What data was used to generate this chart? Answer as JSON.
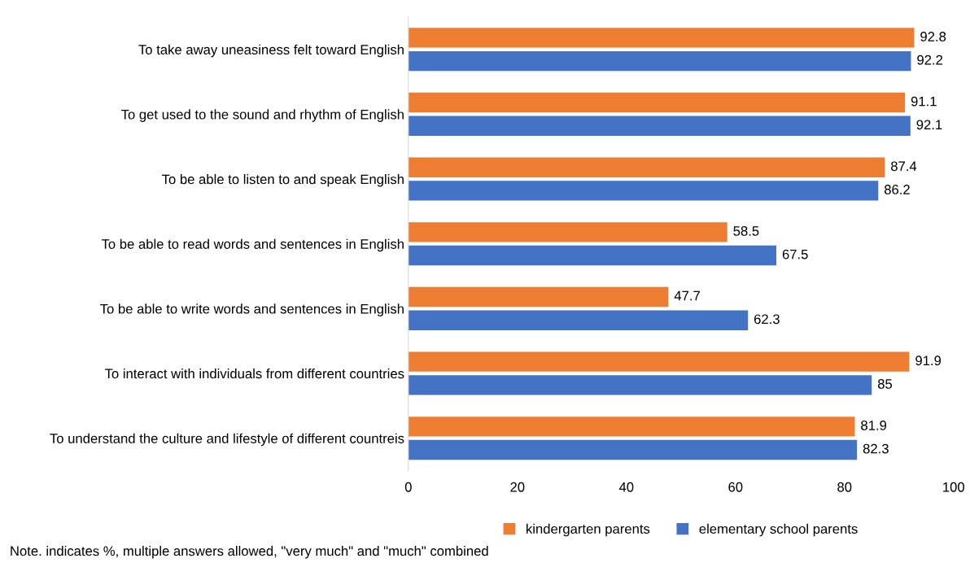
{
  "chart_data": {
    "type": "bar",
    "orientation": "horizontal",
    "categories": [
      "To take away uneasiness felt toward English",
      "To get used to the sound and rhythm of English",
      "To be able to listen to and speak English",
      "To be able to read words and sentences in English",
      "To be able to write words and sentences in English",
      "To interact with individuals from different countries",
      "To understand the culture and lifestyle of different countreis"
    ],
    "series": [
      {
        "name": "kindergarten parents",
        "color": "#ed7d31",
        "values": [
          92.8,
          91.1,
          87.4,
          58.5,
          47.7,
          91.9,
          81.9
        ]
      },
      {
        "name": "elementary school parents",
        "color": "#4472c4",
        "values": [
          92.2,
          92.1,
          86.2,
          67.5,
          62.3,
          85,
          82.3
        ]
      }
    ],
    "xlim": [
      0,
      100
    ],
    "xticks": [
      0,
      20,
      40,
      60,
      80,
      100
    ],
    "data_labels": true,
    "grid": false,
    "legend": "bottom",
    "annotations": [
      "Note. indicates %, multiple answers allowed, \"very much\" and \"much\" combined"
    ]
  }
}
